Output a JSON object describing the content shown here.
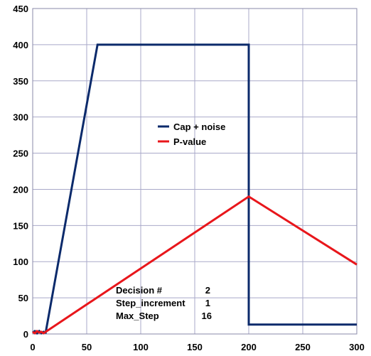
{
  "chart_data": {
    "type": "line",
    "title": "",
    "xlabel": "",
    "ylabel": "",
    "xlim": [
      0,
      300
    ],
    "ylim": [
      0,
      450
    ],
    "xticks": [
      0,
      50,
      100,
      150,
      200,
      250,
      300
    ],
    "yticks": [
      0,
      50,
      100,
      150,
      200,
      250,
      300,
      350,
      400,
      450
    ],
    "x_tick_labels": [
      "0",
      "50",
      "100",
      "150",
      "200",
      "250",
      "300"
    ],
    "y_tick_labels": [
      "0",
      "50",
      "100",
      "150",
      "200",
      "250",
      "300",
      "350",
      "400",
      "450"
    ],
    "grid": true,
    "legend_position": "center",
    "series": [
      {
        "name": "Cap + noise",
        "color": "#0b2a6b",
        "x": [
          0,
          2,
          4,
          6,
          8,
          10,
          12,
          60,
          200,
          200,
          300
        ],
        "y": [
          2,
          4,
          1,
          4,
          1,
          3,
          2,
          400,
          400,
          13,
          13
        ]
      },
      {
        "name": "P-value",
        "color": "#e8161b",
        "x": [
          0,
          2,
          4,
          6,
          8,
          10,
          12,
          200,
          300
        ],
        "y": [
          3,
          1,
          4,
          2,
          3,
          1,
          3,
          190,
          96
        ]
      }
    ],
    "annotations": [
      {
        "label": "Decision #",
        "value": "2"
      },
      {
        "label": "Step_increment",
        "value": "1"
      },
      {
        "label": "Max_Step",
        "value": "16"
      }
    ]
  }
}
